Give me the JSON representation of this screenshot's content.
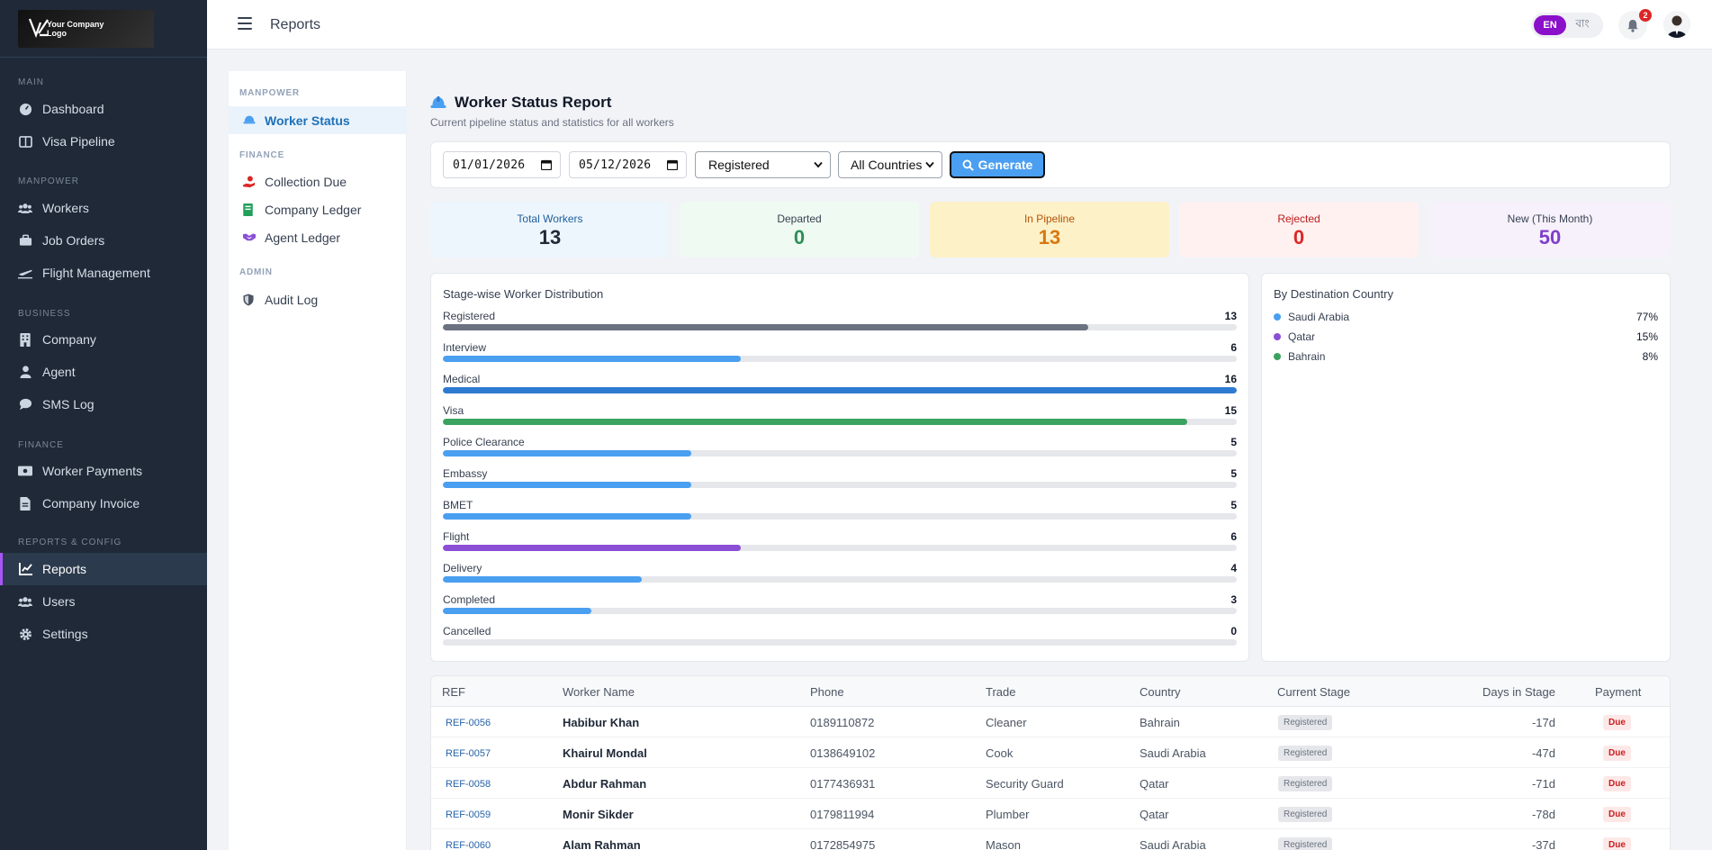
{
  "app": {
    "logo_text": "Your Company Logo",
    "page_title": "Reports"
  },
  "topbar": {
    "lang_en": "EN",
    "lang_bn": "বাং",
    "notification_count": "2"
  },
  "sidebar": {
    "sections": [
      {
        "label": "MAIN"
      },
      {
        "label": "MANPOWER"
      },
      {
        "label": "BUSINESS"
      },
      {
        "label": "FINANCE"
      },
      {
        "label": "REPORTS & CONFIG"
      }
    ],
    "items": [
      {
        "label": "Dashboard",
        "icon": "dashboard-icon"
      },
      {
        "label": "Visa Pipeline",
        "icon": "columns-icon"
      },
      {
        "label": "Workers",
        "icon": "users-icon"
      },
      {
        "label": "Job Orders",
        "icon": "briefcase-icon"
      },
      {
        "label": "Flight Management",
        "icon": "plane-icon"
      },
      {
        "label": "Company",
        "icon": "building-icon"
      },
      {
        "label": "Agent",
        "icon": "user-icon"
      },
      {
        "label": "SMS Log",
        "icon": "chat-icon"
      },
      {
        "label": "Worker Payments",
        "icon": "money-icon"
      },
      {
        "label": "Company Invoice",
        "icon": "invoice-icon"
      },
      {
        "label": "Reports",
        "icon": "chart-icon",
        "active": true
      },
      {
        "label": "Users",
        "icon": "users-icon"
      },
      {
        "label": "Settings",
        "icon": "gear-icon"
      }
    ]
  },
  "submenu": {
    "sections": [
      "MANPOWER",
      "FINANCE",
      "ADMIN"
    ],
    "items": [
      {
        "label": "Worker Status",
        "active": true
      },
      {
        "label": "Collection Due"
      },
      {
        "label": "Company Ledger"
      },
      {
        "label": "Agent Ledger"
      },
      {
        "label": "Audit Log"
      }
    ]
  },
  "report": {
    "title": "Worker Status Report",
    "subtitle": "Current pipeline status and statistics for all workers"
  },
  "filters": {
    "date_from": "01/01/2026",
    "date_to": "05/12/2026",
    "stage_selected": "Registered",
    "country_selected": "All Countries",
    "generate_label": "Generate"
  },
  "stats": [
    {
      "label": "Total Workers",
      "value": "13",
      "bg": "#eef6fd",
      "label_color": "#1d5f9b",
      "value_color": "#1f2937"
    },
    {
      "label": "Departed",
      "value": "0",
      "bg": "#effaf2",
      "label_color": "#374151",
      "value_color": "#2f8f57"
    },
    {
      "label": "In Pipeline",
      "value": "13",
      "bg": "#fdf1c8",
      "label_color": "#b45309",
      "value_color": "#d9770f"
    },
    {
      "label": "Rejected",
      "value": "0",
      "bg": "#fff1f0",
      "label_color": "#b91c1c",
      "value_color": "#dc2626"
    },
    {
      "label": "New (This Month)",
      "value": "50",
      "bg": "#f7f1fc",
      "label_color": "#374151",
      "value_color": "#7e3fc8"
    }
  ],
  "distribution": {
    "title": "Stage-wise Worker Distribution",
    "max": 16,
    "stages": [
      {
        "label": "Registered",
        "value": 13,
        "color": "#6b7280"
      },
      {
        "label": "Interview",
        "value": 6,
        "color": "#4a9ff0"
      },
      {
        "label": "Medical",
        "value": 16,
        "color": "#2f7ad1"
      },
      {
        "label": "Visa",
        "value": 15,
        "color": "#3aa35f"
      },
      {
        "label": "Police Clearance",
        "value": 5,
        "color": "#4a9ff0"
      },
      {
        "label": "Embassy",
        "value": 5,
        "color": "#4a9ff0"
      },
      {
        "label": "BMET",
        "value": 5,
        "color": "#4a9ff0"
      },
      {
        "label": "Flight",
        "value": 6,
        "color": "#8b4fd6"
      },
      {
        "label": "Delivery",
        "value": 4,
        "color": "#4a9ff0"
      },
      {
        "label": "Completed",
        "value": 3,
        "color": "#4a9ff0"
      },
      {
        "label": "Cancelled",
        "value": 0,
        "color": "#4a9ff0"
      }
    ]
  },
  "countries": {
    "title": "By Destination Country",
    "items": [
      {
        "label": "Saudi Arabia",
        "pct": "77%",
        "color": "#4a9ff0"
      },
      {
        "label": "Qatar",
        "pct": "15%",
        "color": "#8b4fd6"
      },
      {
        "label": "Bahrain",
        "pct": "8%",
        "color": "#3aa35f"
      }
    ]
  },
  "table": {
    "headers": [
      "REF",
      "Worker Name",
      "Phone",
      "Trade",
      "Country",
      "Current Stage",
      "Days in Stage",
      "Payment"
    ],
    "rows": [
      {
        "ref": "REF-0056",
        "name": "Habibur Khan",
        "phone": "0189110872",
        "trade": "Cleaner",
        "country": "Bahrain",
        "stage": "Registered",
        "days": "-17d",
        "payment": "Due"
      },
      {
        "ref": "REF-0057",
        "name": "Khairul Mondal",
        "phone": "0138649102",
        "trade": "Cook",
        "country": "Saudi Arabia",
        "stage": "Registered",
        "days": "-47d",
        "payment": "Due"
      },
      {
        "ref": "REF-0058",
        "name": "Abdur Rahman",
        "phone": "0177436931",
        "trade": "Security Guard",
        "country": "Qatar",
        "stage": "Registered",
        "days": "-71d",
        "payment": "Due"
      },
      {
        "ref": "REF-0059",
        "name": "Monir Sikder",
        "phone": "0179811994",
        "trade": "Plumber",
        "country": "Qatar",
        "stage": "Registered",
        "days": "-78d",
        "payment": "Due"
      },
      {
        "ref": "REF-0060",
        "name": "Alam Rahman",
        "phone": "0172854975",
        "trade": "Mason",
        "country": "Saudi Arabia",
        "stage": "Registered",
        "days": "-37d",
        "payment": "Due"
      }
    ]
  }
}
